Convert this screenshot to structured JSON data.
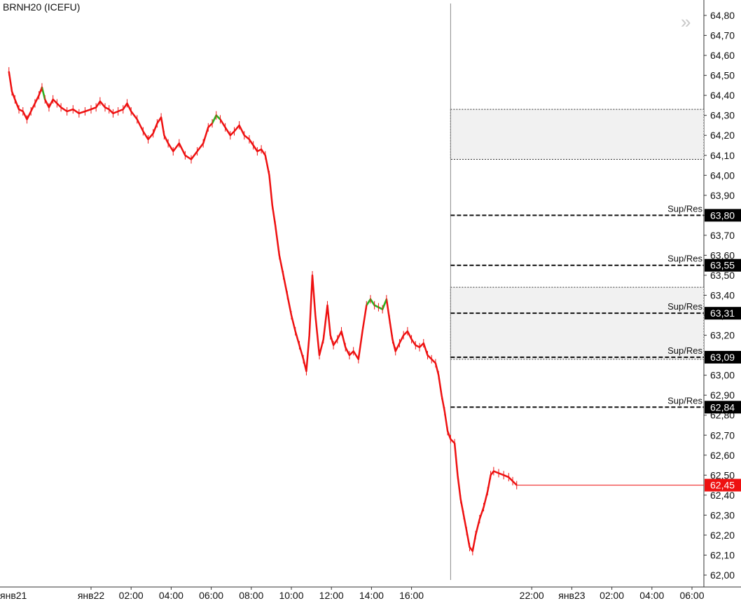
{
  "chart_data": {
    "type": "line",
    "title": "BRNH20 (ICEFU)",
    "ylim": [
      62.0,
      64.8
    ],
    "y_ticks": [
      "64,80",
      "64,70",
      "64,60",
      "64,50",
      "64,40",
      "64,30",
      "64,20",
      "64,10",
      "64,00",
      "63,90",
      "63,80",
      "63,70",
      "63,60",
      "63,50",
      "63,40",
      "63,30",
      "63,20",
      "63,10",
      "63,00",
      "62,90",
      "62,80",
      "62,70",
      "62,60",
      "62,50",
      "62,40",
      "62,30",
      "62,20",
      "62,10",
      "62,00"
    ],
    "x_ticks": [
      {
        "label": "янв21",
        "t": -8
      },
      {
        "label": "янв22",
        "t": 0
      },
      {
        "label": "02:00",
        "t": 2
      },
      {
        "label": "04:00",
        "t": 4
      },
      {
        "label": "06:00",
        "t": 6
      },
      {
        "label": "08:00",
        "t": 8
      },
      {
        "label": "10:00",
        "t": 10
      },
      {
        "label": "12:00",
        "t": 12
      },
      {
        "label": "14:00",
        "t": 14
      },
      {
        "label": "16:00",
        "t": 16
      },
      {
        "label": "22:00",
        "t": 22
      },
      {
        "label": "янв23",
        "t": 24
      },
      {
        "label": "02:00",
        "t": 26
      },
      {
        "label": "04:00",
        "t": 28
      },
      {
        "label": "06:00",
        "t": 30
      }
    ],
    "xlim": [
      -4.15,
      30.7
    ],
    "series": [
      {
        "color": "#ee1111",
        "up_color": "#22bb22",
        "points": [
          [
            -4.1,
            64.52
          ],
          [
            -3.95,
            64.42
          ],
          [
            -3.8,
            64.38
          ],
          [
            -3.6,
            64.33
          ],
          [
            -3.4,
            64.32
          ],
          [
            -3.2,
            64.28
          ],
          [
            -3.0,
            64.32
          ],
          [
            -2.8,
            64.36
          ],
          [
            -2.6,
            64.4
          ],
          [
            -2.45,
            64.44
          ],
          [
            -2.3,
            64.38
          ],
          [
            -2.1,
            64.34
          ],
          [
            -1.9,
            64.38
          ],
          [
            -1.7,
            64.36
          ],
          [
            -1.5,
            64.34
          ],
          [
            -1.2,
            64.32
          ],
          [
            -0.9,
            64.33
          ],
          [
            -0.6,
            64.31
          ],
          [
            -0.3,
            64.32
          ],
          [
            0.0,
            64.33
          ],
          [
            0.25,
            64.34
          ],
          [
            0.45,
            64.37
          ],
          [
            0.7,
            64.34
          ],
          [
            0.9,
            64.33
          ],
          [
            1.1,
            64.31
          ],
          [
            1.35,
            64.32
          ],
          [
            1.6,
            64.33
          ],
          [
            1.8,
            64.36
          ],
          [
            2.0,
            64.32
          ],
          [
            2.3,
            64.28
          ],
          [
            2.6,
            64.22
          ],
          [
            2.85,
            64.18
          ],
          [
            3.1,
            64.21
          ],
          [
            3.3,
            64.26
          ],
          [
            3.5,
            64.29
          ],
          [
            3.65,
            64.2
          ],
          [
            3.85,
            64.16
          ],
          [
            4.1,
            64.12
          ],
          [
            4.4,
            64.16
          ],
          [
            4.7,
            64.1
          ],
          [
            5.0,
            64.08
          ],
          [
            5.3,
            64.12
          ],
          [
            5.6,
            64.16
          ],
          [
            5.85,
            64.24
          ],
          [
            6.05,
            64.26
          ],
          [
            6.25,
            64.3
          ],
          [
            6.45,
            64.28
          ],
          [
            6.7,
            64.24
          ],
          [
            6.95,
            64.2
          ],
          [
            7.15,
            64.22
          ],
          [
            7.4,
            64.25
          ],
          [
            7.65,
            64.2
          ],
          [
            7.9,
            64.18
          ],
          [
            8.1,
            64.15
          ],
          [
            8.3,
            64.12
          ],
          [
            8.5,
            64.13
          ],
          [
            8.7,
            64.1
          ],
          [
            8.9,
            64.0
          ],
          [
            9.05,
            63.85
          ],
          [
            9.2,
            63.75
          ],
          [
            9.4,
            63.6
          ],
          [
            9.6,
            63.5
          ],
          [
            9.8,
            63.4
          ],
          [
            10.0,
            63.3
          ],
          [
            10.2,
            63.22
          ],
          [
            10.4,
            63.15
          ],
          [
            10.6,
            63.08
          ],
          [
            10.75,
            63.02
          ],
          [
            10.9,
            63.2
          ],
          [
            11.05,
            63.5
          ],
          [
            11.2,
            63.3
          ],
          [
            11.4,
            63.1
          ],
          [
            11.6,
            63.18
          ],
          [
            11.8,
            63.35
          ],
          [
            11.95,
            63.2
          ],
          [
            12.1,
            63.15
          ],
          [
            12.3,
            63.18
          ],
          [
            12.5,
            63.22
          ],
          [
            12.7,
            63.14
          ],
          [
            12.9,
            63.1
          ],
          [
            13.1,
            63.12
          ],
          [
            13.35,
            63.08
          ],
          [
            13.55,
            63.22
          ],
          [
            13.75,
            63.35
          ],
          [
            13.95,
            63.38
          ],
          [
            14.15,
            63.35
          ],
          [
            14.35,
            63.34
          ],
          [
            14.55,
            63.33
          ],
          [
            14.75,
            63.38
          ],
          [
            14.9,
            63.28
          ],
          [
            15.05,
            63.18
          ],
          [
            15.2,
            63.12
          ],
          [
            15.4,
            63.16
          ],
          [
            15.6,
            63.2
          ],
          [
            15.8,
            63.22
          ],
          [
            16.0,
            63.18
          ],
          [
            16.2,
            63.15
          ],
          [
            16.4,
            63.14
          ],
          [
            16.6,
            63.16
          ],
          [
            16.8,
            63.1
          ],
          [
            17.0,
            63.08
          ],
          [
            17.2,
            63.06
          ],
          [
            17.35,
            63.0
          ],
          [
            17.5,
            62.9
          ],
          [
            17.65,
            62.82
          ],
          [
            17.8,
            62.72
          ],
          [
            17.95,
            62.68
          ],
          [
            18.15,
            62.66
          ],
          [
            18.3,
            62.5
          ],
          [
            18.45,
            62.38
          ],
          [
            18.6,
            62.3
          ],
          [
            18.75,
            62.22
          ],
          [
            18.9,
            62.14
          ],
          [
            19.05,
            62.12
          ],
          [
            19.2,
            62.2
          ],
          [
            19.4,
            62.28
          ],
          [
            19.6,
            62.34
          ],
          [
            19.8,
            62.42
          ],
          [
            19.95,
            62.5
          ],
          [
            20.1,
            62.52
          ],
          [
            20.35,
            62.51
          ],
          [
            20.6,
            62.5
          ],
          [
            20.85,
            62.49
          ],
          [
            21.05,
            62.47
          ],
          [
            21.25,
            62.45
          ]
        ],
        "up_segments": [
          [
            -2.55,
            -2.3
          ],
          [
            1.15,
            1.45
          ],
          [
            2.05,
            2.25
          ],
          [
            6.05,
            6.65
          ],
          [
            7.2,
            7.45
          ],
          [
            13.75,
            14.85
          ]
        ]
      }
    ],
    "current_price": {
      "value": 62.45,
      "label": "62,45",
      "color": "#ee1111"
    },
    "separator_t": 17.95,
    "zones": [
      {
        "from": 64.08,
        "to": 64.33
      },
      {
        "from": 63.08,
        "to": 63.44
      }
    ],
    "levels": [
      {
        "value": 63.8,
        "label": "63,80",
        "text": "Sup/Res"
      },
      {
        "value": 63.55,
        "label": "63,55",
        "text": "Sup/Res"
      },
      {
        "value": 63.31,
        "label": "63,31",
        "text": "Sup/Res"
      },
      {
        "value": 63.09,
        "label": "63,09",
        "text": "Sup/Res"
      },
      {
        "value": 62.84,
        "label": "62,84",
        "text": "Sup/Res"
      }
    ]
  },
  "ui": {
    "expand_icon": "double-chevron-right-icon"
  }
}
